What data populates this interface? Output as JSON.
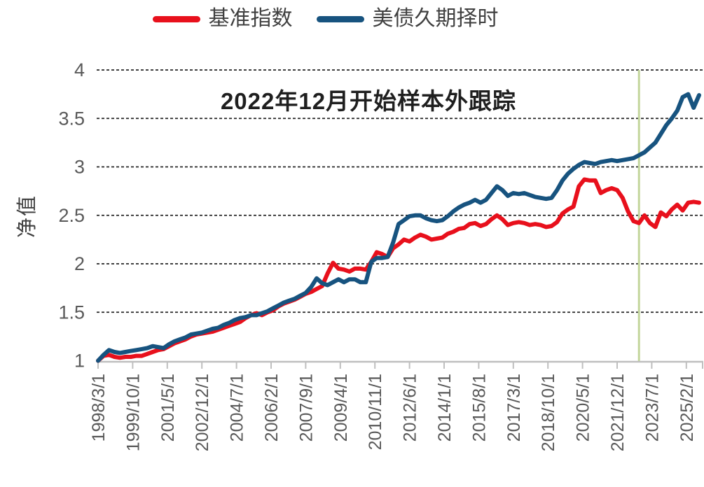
{
  "legend": {
    "items": [
      {
        "label": "基准指数",
        "color": "#e8101c"
      },
      {
        "label": "美债久期择时",
        "color": "#17537f"
      }
    ]
  },
  "annotation": "2022年12月开始样本外跟踪",
  "y_axis_title": "净值",
  "chart_data": {
    "type": "line",
    "title": "",
    "xlabel": "",
    "ylabel": "净值",
    "ylim": [
      1,
      4
    ],
    "grid": "horizontal-dashed",
    "legend_position": "top",
    "annotation": "2022年12月开始样本外跟踪",
    "y_ticks": [
      "1",
      "1.5",
      "2",
      "2.5",
      "3",
      "3.5",
      "4"
    ],
    "x_tick_labels": [
      "1998/3/1",
      "1999/10/1",
      "2001/5/1",
      "2002/12/1",
      "2004/7/1",
      "2006/2/1",
      "2007/9/1",
      "2009/4/1",
      "2010/11/1",
      "2012/6/1",
      "2014/1/1",
      "2015/8/1",
      "2017/3/1",
      "2018/10/1",
      "2020/5/1",
      "2021/12/1",
      "2023/7/1",
      "2025/2/1"
    ],
    "x_tick_interval_months": 19,
    "x": [
      "1998/3",
      "1998/6",
      "1998/9",
      "1998/12",
      "1999/3",
      "1999/6",
      "1999/9",
      "1999/12",
      "2000/3",
      "2000/6",
      "2000/9",
      "2000/12",
      "2001/3",
      "2001/6",
      "2001/9",
      "2001/12",
      "2002/3",
      "2002/6",
      "2002/9",
      "2002/12",
      "2003/3",
      "2003/6",
      "2003/9",
      "2003/12",
      "2004/3",
      "2004/6",
      "2004/9",
      "2004/12",
      "2005/3",
      "2005/6",
      "2005/9",
      "2005/12",
      "2006/3",
      "2006/6",
      "2006/9",
      "2006/12",
      "2007/3",
      "2007/6",
      "2007/9",
      "2007/12",
      "2008/3",
      "2008/6",
      "2008/9",
      "2008/12",
      "2009/3",
      "2009/6",
      "2009/9",
      "2009/12",
      "2010/3",
      "2010/6",
      "2010/9",
      "2010/12",
      "2011/3",
      "2011/6",
      "2011/9",
      "2011/12",
      "2012/3",
      "2012/6",
      "2012/9",
      "2012/12",
      "2013/3",
      "2013/6",
      "2013/9",
      "2013/12",
      "2014/3",
      "2014/6",
      "2014/9",
      "2014/12",
      "2015/3",
      "2015/6",
      "2015/9",
      "2015/12",
      "2016/3",
      "2016/6",
      "2016/9",
      "2016/12",
      "2017/3",
      "2017/6",
      "2017/9",
      "2017/12",
      "2018/3",
      "2018/6",
      "2018/9",
      "2018/12",
      "2019/3",
      "2019/6",
      "2019/9",
      "2019/12",
      "2020/3",
      "2020/6",
      "2020/9",
      "2020/12",
      "2021/3",
      "2021/6",
      "2021/9",
      "2021/12",
      "2022/3",
      "2022/6",
      "2022/9",
      "2022/12",
      "2023/3",
      "2023/6",
      "2023/9",
      "2023/12",
      "2024/3",
      "2024/6",
      "2024/9",
      "2024/12",
      "2025/3",
      "2025/6",
      "2025/9"
    ],
    "series": [
      {
        "name": "基准指数",
        "color": "#e8101c",
        "values": [
          1.0,
          1.05,
          1.06,
          1.04,
          1.03,
          1.04,
          1.04,
          1.05,
          1.05,
          1.07,
          1.09,
          1.11,
          1.12,
          1.15,
          1.18,
          1.2,
          1.22,
          1.25,
          1.27,
          1.28,
          1.29,
          1.3,
          1.32,
          1.34,
          1.36,
          1.38,
          1.4,
          1.44,
          1.47,
          1.49,
          1.47,
          1.5,
          1.52,
          1.56,
          1.59,
          1.61,
          1.63,
          1.66,
          1.69,
          1.71,
          1.74,
          1.77,
          1.9,
          2.01,
          1.95,
          1.94,
          1.92,
          1.95,
          1.95,
          1.94,
          2.02,
          2.12,
          2.1,
          2.07,
          2.16,
          2.2,
          2.25,
          2.23,
          2.27,
          2.3,
          2.28,
          2.25,
          2.26,
          2.27,
          2.31,
          2.33,
          2.36,
          2.37,
          2.41,
          2.42,
          2.39,
          2.41,
          2.46,
          2.5,
          2.46,
          2.4,
          2.42,
          2.43,
          2.42,
          2.4,
          2.41,
          2.4,
          2.38,
          2.39,
          2.43,
          2.52,
          2.56,
          2.59,
          2.8,
          2.87,
          2.86,
          2.86,
          2.73,
          2.76,
          2.78,
          2.76,
          2.68,
          2.54,
          2.44,
          2.42,
          2.5,
          2.42,
          2.38,
          2.53,
          2.49,
          2.56,
          2.61,
          2.55,
          2.63,
          2.64,
          2.63
        ]
      },
      {
        "name": "美债久期择时",
        "color": "#17537f",
        "values": [
          1.0,
          1.06,
          1.11,
          1.09,
          1.08,
          1.09,
          1.1,
          1.11,
          1.12,
          1.13,
          1.15,
          1.14,
          1.13,
          1.17,
          1.2,
          1.22,
          1.24,
          1.27,
          1.28,
          1.29,
          1.31,
          1.33,
          1.34,
          1.37,
          1.39,
          1.42,
          1.44,
          1.45,
          1.47,
          1.47,
          1.49,
          1.51,
          1.54,
          1.57,
          1.6,
          1.62,
          1.64,
          1.67,
          1.7,
          1.76,
          1.85,
          1.8,
          1.78,
          1.81,
          1.84,
          1.81,
          1.84,
          1.84,
          1.81,
          1.81,
          2.02,
          2.06,
          2.06,
          2.07,
          2.22,
          2.41,
          2.45,
          2.49,
          2.5,
          2.5,
          2.47,
          2.45,
          2.44,
          2.45,
          2.49,
          2.54,
          2.58,
          2.61,
          2.63,
          2.66,
          2.63,
          2.66,
          2.73,
          2.8,
          2.76,
          2.7,
          2.73,
          2.72,
          2.73,
          2.71,
          2.69,
          2.68,
          2.67,
          2.68,
          2.76,
          2.86,
          2.93,
          2.98,
          3.02,
          3.05,
          3.04,
          3.03,
          3.05,
          3.06,
          3.07,
          3.06,
          3.07,
          3.08,
          3.09,
          3.12,
          3.15,
          3.2,
          3.25,
          3.34,
          3.43,
          3.5,
          3.58,
          3.72,
          3.75,
          3.61,
          3.74
        ]
      }
    ],
    "vline": {
      "date": "2022/12",
      "color": "#c3d69b",
      "label": "2022年12月开始样本外跟踪"
    }
  },
  "style_colors": {
    "gridline": "#262626",
    "axis": "#bfbfbf",
    "tick_text": "#595959"
  }
}
